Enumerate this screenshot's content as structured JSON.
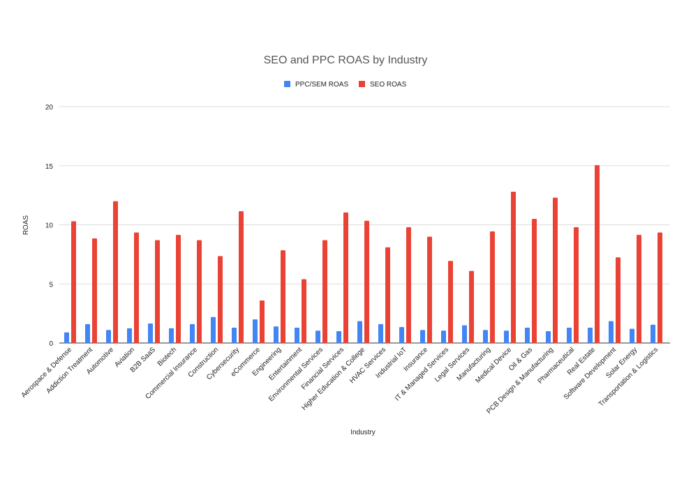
{
  "chart_data": {
    "type": "bar",
    "title": "SEO and PPC ROAS by Industry",
    "xlabel": "Industry",
    "ylabel": "ROAS",
    "ylim": [
      0,
      20
    ],
    "yticks": [
      "0",
      "5",
      "10",
      "15",
      "20"
    ],
    "grid": true,
    "legend_position": "top",
    "categories": [
      "Aerospace & Defense",
      "Addiction Treatment",
      "Automotive",
      "Aviation",
      "B2B SaaS",
      "Biotech",
      "Commercial Insurance",
      "Construction",
      "Cybersecurity",
      "eCommerce",
      "Engineering",
      "Entertainment",
      "Environmental Services",
      "Financial Services",
      "Higher Education & College",
      "HVAC Services",
      "Industrial IoT",
      "Insurance",
      "IT & Managed Services",
      "Legal Services",
      "Manufacturing",
      "Medical Device",
      "Oil & Gas",
      "PCB Design & Manufacturing",
      "Pharmaceutical",
      "Real Estate",
      "Software Development",
      "Solar Energy",
      "Transportation & Logistics"
    ],
    "series": [
      {
        "name": "PPC/SEM ROAS",
        "color": "#4285f4",
        "values": [
          0.9,
          1.6,
          1.1,
          1.25,
          1.65,
          1.25,
          1.6,
          2.2,
          1.3,
          2.0,
          1.4,
          1.3,
          1.05,
          1.0,
          1.85,
          1.6,
          1.35,
          1.1,
          1.05,
          1.5,
          1.1,
          1.05,
          1.3,
          1.0,
          1.3,
          1.3,
          1.85,
          1.2,
          1.55
        ]
      },
      {
        "name": "SEO ROAS",
        "color": "#ea4335",
        "values": [
          10.3,
          8.85,
          12.0,
          9.35,
          8.7,
          9.15,
          8.7,
          7.35,
          11.15,
          3.6,
          7.85,
          5.4,
          8.7,
          11.05,
          10.35,
          8.1,
          9.8,
          9.0,
          6.95,
          6.1,
          9.45,
          12.8,
          10.5,
          12.3,
          9.8,
          15.05,
          7.25,
          9.15,
          9.35
        ]
      }
    ]
  }
}
